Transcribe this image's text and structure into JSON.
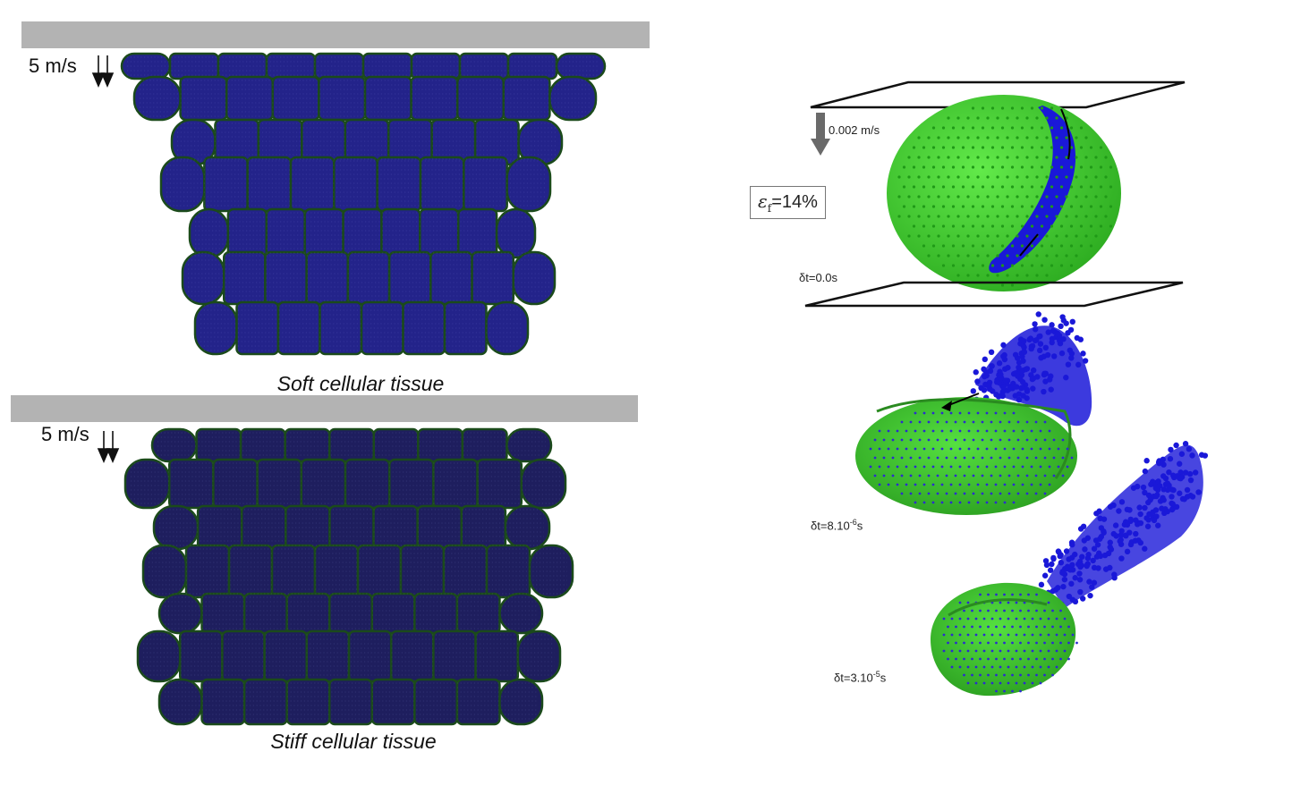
{
  "colors": {
    "plate": "#b3b3b3",
    "cell_fill_soft": "#23238a",
    "cell_fill_stiff": "#1e1e5e",
    "cell_border": "#1b4a1b",
    "sphere_green": "#3fd22b",
    "sphere_blue": "#1a18d8",
    "arrow_gray": "#6a6a6a"
  },
  "left_panel": {
    "soft": {
      "speed_label": "5 m/s",
      "caption": "Soft cellular tissue"
    },
    "stiff": {
      "speed_label": "5 m/s",
      "caption": "Stiff cellular tissue"
    }
  },
  "right_panel": {
    "compression_speed": "0.002 m/s",
    "strain_symbol": "ε",
    "strain_subscript": "f",
    "strain_value": "=14%",
    "frames": [
      {
        "time_prefix": "δt=",
        "time_value": "0.0s"
      },
      {
        "time_prefix": "δt=",
        "time_mantissa": "8.10",
        "time_exp": "-6",
        "time_unit": "s"
      },
      {
        "time_prefix": "δt=",
        "time_mantissa": "3.10",
        "time_exp": "-5",
        "time_unit": "s"
      }
    ]
  }
}
